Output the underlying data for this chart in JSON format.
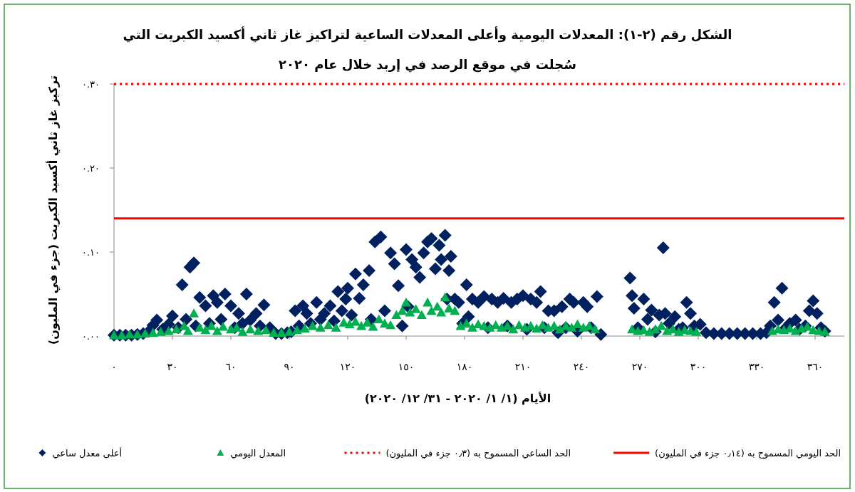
{
  "chart_data": {
    "type": "scatter",
    "title": "الشكل رقم (٢-١): المعدلات اليومية وأعلى المعدلات الساعية لتراكيز غاز ثاني أكسيد الكبريت التي سُجلت في موقع الرصد في إربد خلال عام ٢٠٢٠",
    "xlabel": "الأيام (١/ ١/ ٢٠٢٠ - ٣١/ ١٢/ ٢٠٢٠)",
    "ylabel": "تركيز غاز ثاني أكسيد الكبريت (جزء في المليون)",
    "xlim": [
      0,
      375
    ],
    "xticks": [
      {
        "value": 0,
        "label": "٠"
      },
      {
        "value": 30,
        "label": "٣٠"
      },
      {
        "value": 60,
        "label": "٦٠"
      },
      {
        "value": 90,
        "label": "٩٠"
      },
      {
        "value": 120,
        "label": "١٢٠"
      },
      {
        "value": 150,
        "label": "١٥٠"
      },
      {
        "value": 180,
        "label": "١٨٠"
      },
      {
        "value": 210,
        "label": "٢١٠"
      },
      {
        "value": 240,
        "label": "٢٤٠"
      },
      {
        "value": 270,
        "label": "٢٧٠"
      },
      {
        "value": 300,
        "label": "٣٠٠"
      },
      {
        "value": 330,
        "label": "٣٣٠"
      },
      {
        "value": 360,
        "label": "٣٦٠"
      }
    ],
    "ylim": [
      0,
      0.3
    ],
    "yticks": [
      {
        "value": 0,
        "label": "٠.٠٠"
      },
      {
        "value": 0.1,
        "label": "٠.١٠"
      },
      {
        "value": 0.2,
        "label": "٠.٢٠"
      },
      {
        "value": 0.3,
        "label": "٠.٣٠"
      }
    ],
    "legend": "bottom",
    "ref_lines": [
      {
        "axis": "y",
        "value": 0.14,
        "label": "الحد اليومي المسموح به (٠٫١٤ جزء في المليون)",
        "color": "#ff0000",
        "line_style": "solid"
      },
      {
        "axis": "y",
        "value": 0.3,
        "label": "الحد الساعي المسموح به (٠٫٣ جزء في المليون)",
        "color": "#ff0000",
        "line_style": "dotted"
      }
    ],
    "series": [
      {
        "name": "المعدل اليومي",
        "color": "#00b050",
        "marker": "triangle",
        "x": [
          0,
          4,
          8,
          12,
          16,
          20,
          24,
          28,
          32,
          36,
          38,
          41,
          44,
          47,
          50,
          53,
          56,
          60,
          63,
          66,
          70,
          74,
          78,
          82,
          86,
          90,
          94,
          98,
          102,
          106,
          110,
          114,
          118,
          121,
          124,
          127,
          130,
          133,
          136,
          139,
          142,
          145,
          148,
          150,
          152,
          155,
          158,
          161,
          163,
          166,
          168,
          170,
          172,
          175,
          178,
          181,
          184,
          187,
          190,
          193,
          196,
          199,
          202,
          205,
          208,
          211,
          214,
          217,
          220,
          223,
          226,
          229,
          232,
          235,
          238,
          241,
          244,
          247,
          266,
          269,
          272,
          275,
          278,
          281,
          284,
          287,
          290,
          293,
          296,
          299,
          338,
          341,
          344,
          347,
          350,
          353,
          356,
          359,
          362,
          365
        ],
        "values": [
          0.001,
          0.001,
          0.002,
          0.002,
          0.003,
          0.004,
          0.005,
          0.006,
          0.008,
          0.012,
          0.006,
          0.027,
          0.01,
          0.007,
          0.012,
          0.006,
          0.011,
          0.008,
          0.01,
          0.005,
          0.008,
          0.006,
          0.007,
          0.004,
          0.004,
          0.005,
          0.007,
          0.009,
          0.012,
          0.01,
          0.013,
          0.01,
          0.016,
          0.014,
          0.017,
          0.012,
          0.016,
          0.011,
          0.02,
          0.015,
          0.013,
          0.025,
          0.03,
          0.04,
          0.028,
          0.032,
          0.025,
          0.04,
          0.03,
          0.035,
          0.028,
          0.046,
          0.033,
          0.03,
          0.012,
          0.015,
          0.01,
          0.014,
          0.012,
          0.01,
          0.013,
          0.01,
          0.012,
          0.008,
          0.013,
          0.01,
          0.012,
          0.009,
          0.013,
          0.01,
          0.012,
          0.008,
          0.012,
          0.01,
          0.014,
          0.01,
          0.012,
          0.008,
          0.008,
          0.006,
          0.007,
          0.005,
          0.008,
          0.012,
          0.006,
          0.008,
          0.005,
          0.007,
          0.006,
          0.005,
          0.006,
          0.008,
          0.007,
          0.009,
          0.006,
          0.009,
          0.011,
          0.007,
          0.006,
          0.005
        ]
      },
      {
        "name": "أعلى معدل ساعي",
        "color": "#002060",
        "marker": "diamond",
        "x": [
          0,
          3,
          6,
          9,
          12,
          15,
          18,
          20,
          22,
          25,
          28,
          30,
          33,
          35,
          37,
          39,
          41,
          42,
          44,
          47,
          49,
          51,
          53,
          55,
          57,
          60,
          62,
          64,
          66,
          68,
          70,
          73,
          75,
          77,
          80,
          83,
          86,
          89,
          91,
          93,
          95,
          97,
          99,
          101,
          104,
          106,
          108,
          111,
          113,
          115,
          117,
          119,
          120,
          122,
          124,
          126,
          128,
          131,
          132,
          134,
          137,
          139,
          142,
          144,
          146,
          148,
          150,
          151,
          153,
          155,
          157,
          159,
          161,
          163,
          165,
          167,
          168,
          170,
          171,
          172,
          173,
          175,
          177,
          179,
          181,
          182,
          184,
          187,
          190,
          192,
          194,
          197,
          200,
          202,
          204,
          207,
          210,
          212,
          214,
          217,
          219,
          221,
          223,
          226,
          228,
          230,
          232,
          234,
          236,
          238,
          241,
          243,
          245,
          248,
          250,
          265,
          266,
          267,
          269,
          272,
          274,
          276,
          278,
          280,
          282,
          283,
          285,
          288,
          290,
          292,
          294,
          296,
          298,
          301,
          304,
          308,
          312,
          316,
          320,
          324,
          328,
          332,
          335,
          337,
          339,
          341,
          343,
          345,
          347,
          350,
          352,
          355,
          357,
          359,
          361,
          363,
          365
        ],
        "values": [
          0.001,
          0.001,
          0.001,
          0.001,
          0.002,
          0.003,
          0.006,
          0.013,
          0.019,
          0.008,
          0.014,
          0.024,
          0.01,
          0.061,
          0.02,
          0.082,
          0.087,
          0.012,
          0.046,
          0.036,
          0.015,
          0.048,
          0.04,
          0.02,
          0.05,
          0.036,
          0.01,
          0.027,
          0.015,
          0.05,
          0.019,
          0.027,
          0.012,
          0.037,
          0.01,
          0.003,
          0.003,
          0.004,
          0.005,
          0.03,
          0.012,
          0.036,
          0.027,
          0.015,
          0.04,
          0.02,
          0.027,
          0.036,
          0.018,
          0.053,
          0.03,
          0.044,
          0.057,
          0.025,
          0.074,
          0.045,
          0.061,
          0.078,
          0.02,
          0.112,
          0.118,
          0.03,
          0.099,
          0.086,
          0.06,
          0.012,
          0.103,
          0.035,
          0.091,
          0.082,
          0.07,
          0.099,
          0.112,
          0.116,
          0.08,
          0.108,
          0.091,
          0.12,
          0.044,
          0.078,
          0.095,
          0.044,
          0.04,
          0.015,
          0.061,
          0.023,
          0.044,
          0.04,
          0.047,
          0.01,
          0.044,
          0.04,
          0.045,
          0.012,
          0.04,
          0.044,
          0.048,
          0.008,
          0.044,
          0.04,
          0.053,
          0.01,
          0.03,
          0.03,
          0.004,
          0.035,
          0.01,
          0.044,
          0.04,
          0.006,
          0.04,
          0.035,
          0.01,
          0.047,
          0.002,
          0.069,
          0.048,
          0.033,
          0.01,
          0.044,
          0.02,
          0.031,
          0.005,
          0.025,
          0.105,
          0.027,
          0.015,
          0.023,
          0.008,
          0.01,
          0.04,
          0.027,
          0.012,
          0.014,
          0.004,
          0.003,
          0.003,
          0.003,
          0.003,
          0.003,
          0.003,
          0.003,
          0.004,
          0.012,
          0.04,
          0.019,
          0.057,
          0.01,
          0.015,
          0.019,
          0.008,
          0.012,
          0.03,
          0.042,
          0.027,
          0.01,
          0.006
        ]
      }
    ]
  }
}
